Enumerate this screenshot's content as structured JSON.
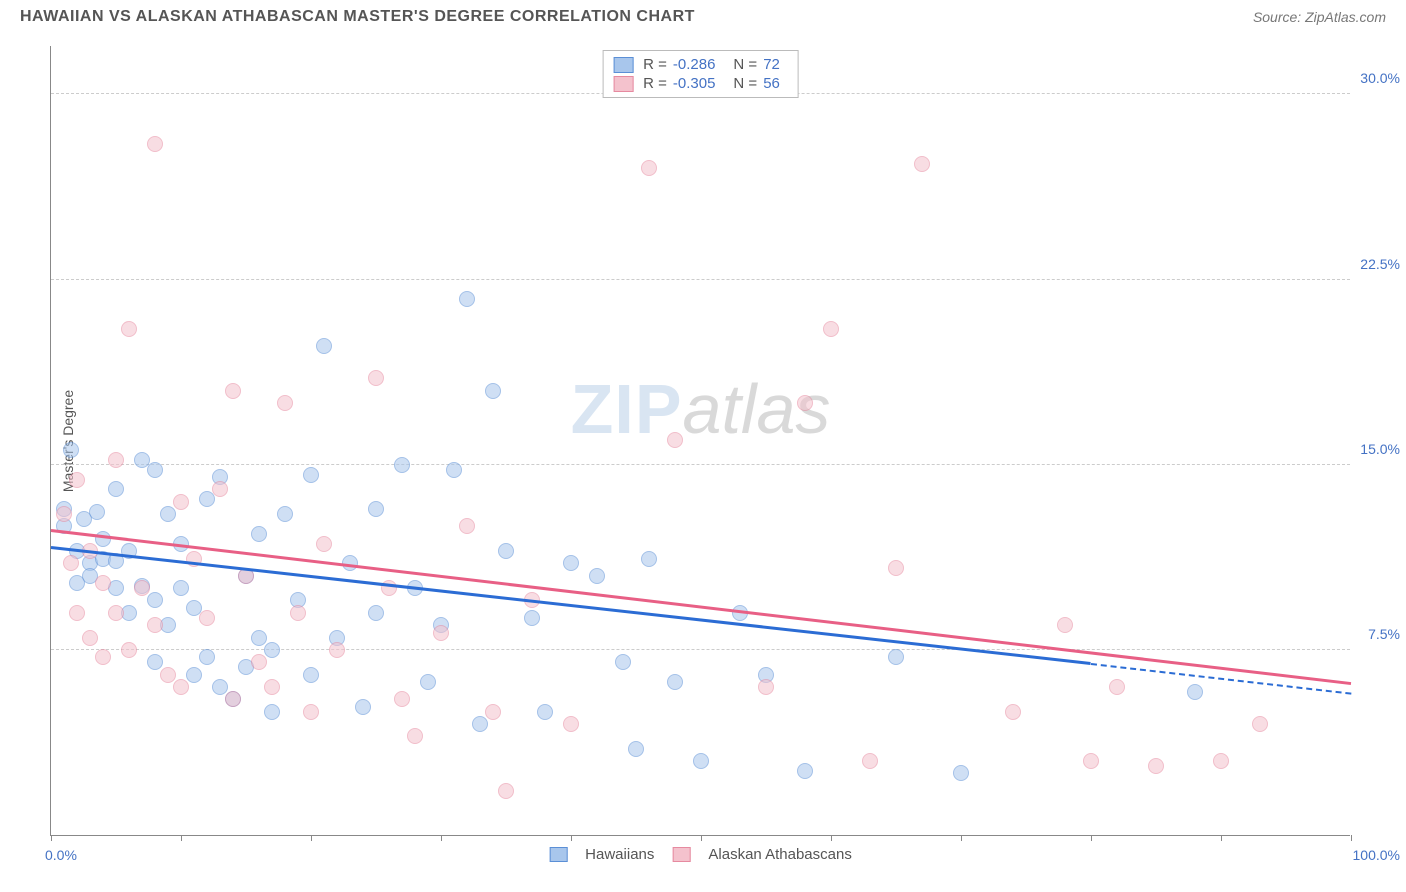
{
  "header": {
    "title": "HAWAIIAN VS ALASKAN ATHABASCAN MASTER'S DEGREE CORRELATION CHART",
    "source_prefix": "Source: ",
    "source_name": "ZipAtlas.com"
  },
  "watermark": {
    "part1": "ZIP",
    "part2": "atlas"
  },
  "chart": {
    "type": "scatter",
    "background_color": "#ffffff",
    "grid_color": "#cccccc",
    "axis_color": "#888888",
    "label_color": "#4472c4",
    "y_axis_title": "Master's Degree",
    "xlim": [
      0,
      100
    ],
    "ylim": [
      0,
      32
    ],
    "x_ticks": [
      0,
      10,
      20,
      30,
      40,
      50,
      60,
      70,
      80,
      90,
      100
    ],
    "x_tick_labels": {
      "0": "0.0%",
      "100": "100.0%"
    },
    "y_ticks": [
      7.5,
      15.0,
      22.5,
      30.0
    ],
    "y_tick_labels": [
      "7.5%",
      "15.0%",
      "22.5%",
      "30.0%"
    ],
    "point_radius": 8,
    "point_opacity": 0.55,
    "series": [
      {
        "name": "Hawaiians",
        "fill_color": "#a8c6ec",
        "stroke_color": "#5b8fd6",
        "line_color": "#2b6cd4",
        "trend": {
          "x1": 0,
          "y1": 11.6,
          "x2": 80,
          "y2": 6.9,
          "dash_from_x": 80,
          "dash_to_x": 100,
          "dash_y2": 5.7
        },
        "stats": {
          "R": "-0.286",
          "N": "72"
        },
        "points": [
          [
            1,
            12.5
          ],
          [
            1,
            13.2
          ],
          [
            1.5,
            15.6
          ],
          [
            2,
            11.5
          ],
          [
            2,
            10.2
          ],
          [
            2.5,
            12.8
          ],
          [
            3,
            11.0
          ],
          [
            3,
            10.5
          ],
          [
            3.5,
            13.1
          ],
          [
            4,
            12.0
          ],
          [
            4,
            11.2
          ],
          [
            5,
            14.0
          ],
          [
            5,
            10.0
          ],
          [
            5,
            11.1
          ],
          [
            6,
            9.0
          ],
          [
            6,
            11.5
          ],
          [
            7,
            15.2
          ],
          [
            7,
            10.1
          ],
          [
            8,
            14.8
          ],
          [
            8,
            9.5
          ],
          [
            8,
            7.0
          ],
          [
            9,
            13.0
          ],
          [
            9,
            8.5
          ],
          [
            10,
            11.8
          ],
          [
            10,
            10.0
          ],
          [
            11,
            6.5
          ],
          [
            11,
            9.2
          ],
          [
            12,
            13.6
          ],
          [
            12,
            7.2
          ],
          [
            13,
            14.5
          ],
          [
            13,
            6.0
          ],
          [
            14,
            5.5
          ],
          [
            15,
            10.5
          ],
          [
            15,
            6.8
          ],
          [
            16,
            8.0
          ],
          [
            16,
            12.2
          ],
          [
            17,
            7.5
          ],
          [
            17,
            5.0
          ],
          [
            18,
            13.0
          ],
          [
            19,
            9.5
          ],
          [
            20,
            14.6
          ],
          [
            20,
            6.5
          ],
          [
            21,
            19.8
          ],
          [
            22,
            8.0
          ],
          [
            23,
            11.0
          ],
          [
            24,
            5.2
          ],
          [
            25,
            9.0
          ],
          [
            25,
            13.2
          ],
          [
            27,
            15.0
          ],
          [
            28,
            10.0
          ],
          [
            29,
            6.2
          ],
          [
            30,
            8.5
          ],
          [
            31,
            14.8
          ],
          [
            32,
            21.7
          ],
          [
            33,
            4.5
          ],
          [
            34,
            18.0
          ],
          [
            35,
            11.5
          ],
          [
            37,
            8.8
          ],
          [
            38,
            5.0
          ],
          [
            40,
            11.0
          ],
          [
            42,
            10.5
          ],
          [
            44,
            7.0
          ],
          [
            45,
            3.5
          ],
          [
            46,
            11.2
          ],
          [
            48,
            6.2
          ],
          [
            50,
            3.0
          ],
          [
            53,
            9.0
          ],
          [
            55,
            6.5
          ],
          [
            58,
            2.6
          ],
          [
            65,
            7.2
          ],
          [
            70,
            2.5
          ],
          [
            88,
            5.8
          ]
        ]
      },
      {
        "name": "Alaskan Athabascans",
        "fill_color": "#f4c2cd",
        "stroke_color": "#e68aa0",
        "line_color": "#e85f85",
        "trend": {
          "x1": 0,
          "y1": 12.3,
          "x2": 100,
          "y2": 6.1
        },
        "stats": {
          "R": "-0.305",
          "N": "56"
        },
        "points": [
          [
            1,
            13.0
          ],
          [
            1.5,
            11.0
          ],
          [
            2,
            14.4
          ],
          [
            2,
            9.0
          ],
          [
            3,
            11.5
          ],
          [
            3,
            8.0
          ],
          [
            4,
            10.2
          ],
          [
            4,
            7.2
          ],
          [
            5,
            15.2
          ],
          [
            5,
            9.0
          ],
          [
            6,
            20.5
          ],
          [
            6,
            7.5
          ],
          [
            7,
            10.0
          ],
          [
            8,
            28.0
          ],
          [
            8,
            8.5
          ],
          [
            9,
            6.5
          ],
          [
            10,
            13.5
          ],
          [
            10,
            6.0
          ],
          [
            11,
            11.2
          ],
          [
            12,
            8.8
          ],
          [
            13,
            14.0
          ],
          [
            14,
            5.5
          ],
          [
            14,
            18.0
          ],
          [
            15,
            10.5
          ],
          [
            16,
            7.0
          ],
          [
            17,
            6.0
          ],
          [
            18,
            17.5
          ],
          [
            19,
            9.0
          ],
          [
            20,
            5.0
          ],
          [
            21,
            11.8
          ],
          [
            22,
            7.5
          ],
          [
            25,
            18.5
          ],
          [
            26,
            10.0
          ],
          [
            27,
            5.5
          ],
          [
            28,
            4.0
          ],
          [
            30,
            8.2
          ],
          [
            32,
            12.5
          ],
          [
            34,
            5.0
          ],
          [
            35,
            1.8
          ],
          [
            37,
            9.5
          ],
          [
            40,
            4.5
          ],
          [
            46,
            27.0
          ],
          [
            48,
            16.0
          ],
          [
            55,
            6.0
          ],
          [
            58,
            17.5
          ],
          [
            60,
            20.5
          ],
          [
            63,
            3.0
          ],
          [
            65,
            10.8
          ],
          [
            67,
            27.2
          ],
          [
            74,
            5.0
          ],
          [
            78,
            8.5
          ],
          [
            80,
            3.0
          ],
          [
            82,
            6.0
          ],
          [
            85,
            2.8
          ],
          [
            90,
            3.0
          ],
          [
            93,
            4.5
          ]
        ]
      }
    ],
    "legend_R_label": "R =",
    "legend_N_label": "N ="
  }
}
